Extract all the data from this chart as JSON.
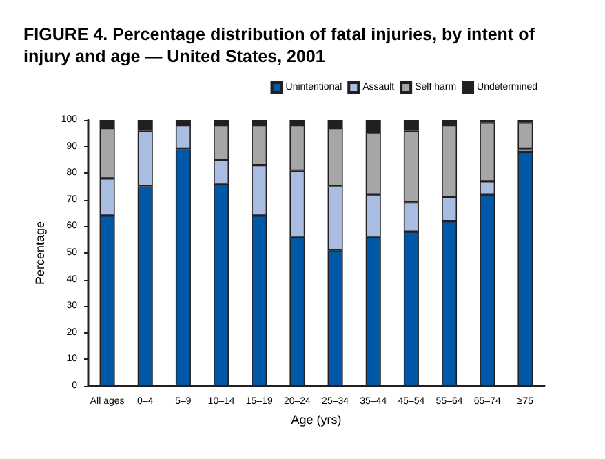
{
  "chart_data": {
    "type": "bar",
    "stacked": true,
    "title": "FIGURE 4. Percentage distribution of fatal injuries, by intent of injury and age — United States, 2001",
    "categories": [
      "All ages",
      "0–4",
      "5–9",
      "10–14",
      "15–19",
      "20–24",
      "25–34",
      "35–44",
      "45–54",
      "55–64",
      "65–74",
      "≥75"
    ],
    "series": [
      {
        "name": "Unintentional",
        "color": "#0059a8",
        "values": [
          64,
          75,
          89,
          76,
          64,
          56,
          51,
          56,
          58,
          62,
          72,
          88
        ]
      },
      {
        "name": "Assault",
        "color": "#a9bde3",
        "values": [
          14,
          21,
          9,
          9,
          19,
          25,
          24,
          16,
          11,
          9,
          5,
          1
        ]
      },
      {
        "name": "Self harm",
        "color": "#a6a6a6",
        "values": [
          19,
          0,
          0,
          13,
          15,
          17,
          22,
          23,
          27,
          27,
          22,
          10
        ]
      },
      {
        "name": "Undetermined",
        "color": "#231f20",
        "values": [
          3,
          4,
          2,
          2,
          2,
          2,
          3,
          5,
          4,
          2,
          1,
          1
        ]
      }
    ],
    "xlabel": "Age (yrs)",
    "ylabel": "Percentage",
    "ylim": [
      0,
      100
    ],
    "yticks": [
      0,
      10,
      20,
      30,
      40,
      50,
      60,
      70,
      80,
      90,
      100
    ],
    "grid": false,
    "legend": "top right"
  }
}
